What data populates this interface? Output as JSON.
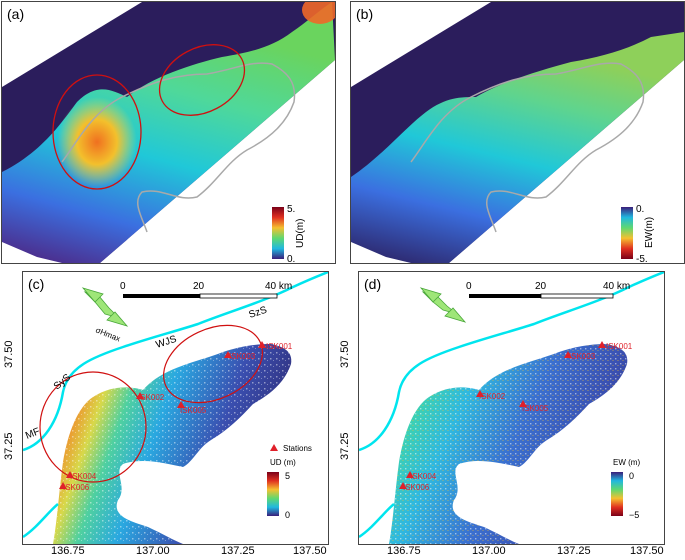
{
  "panels": {
    "a": {
      "tag": "(a)",
      "colorbar": {
        "top": "5.",
        "bottom": "0.",
        "label": "UD(m)"
      }
    },
    "b": {
      "tag": "(b)",
      "colorbar": {
        "top": "0.",
        "bottom": "-5.",
        "label": "EW(m)"
      }
    },
    "c": {
      "tag": "(c)",
      "scalebar": {
        "ticks": [
          "0",
          "20",
          "40 km"
        ]
      },
      "stress_label": "σHmax",
      "faults": [
        "SzS",
        "WJS",
        "SyS",
        "MF"
      ],
      "stations": [
        "ISK001",
        "ISK003",
        "ISK002",
        "ISK005",
        "ISK004",
        "ISK006"
      ],
      "legend": {
        "stations": "Stations",
        "title": "UD (m)",
        "max": "5",
        "min": "0"
      }
    },
    "d": {
      "tag": "(d)",
      "scalebar": {
        "ticks": [
          "0",
          "20",
          "40 km"
        ]
      },
      "stations": [
        "ISK001",
        "ISK003",
        "ISK002",
        "ISK005",
        "ISK004",
        "ISK006"
      ],
      "legend": {
        "title": "EW (m)",
        "max": "0",
        "min": "−5"
      }
    }
  },
  "axes": {
    "lat_ticks": [
      "37.50",
      "37.25"
    ],
    "lon_ticks": [
      "136.75",
      "137.00",
      "137.25",
      "137.50"
    ]
  },
  "colors": {
    "deep": "#2b1d5c",
    "mid": "#20b8c8",
    "hot": "#e5202a",
    "coast": "#00e5ee"
  }
}
